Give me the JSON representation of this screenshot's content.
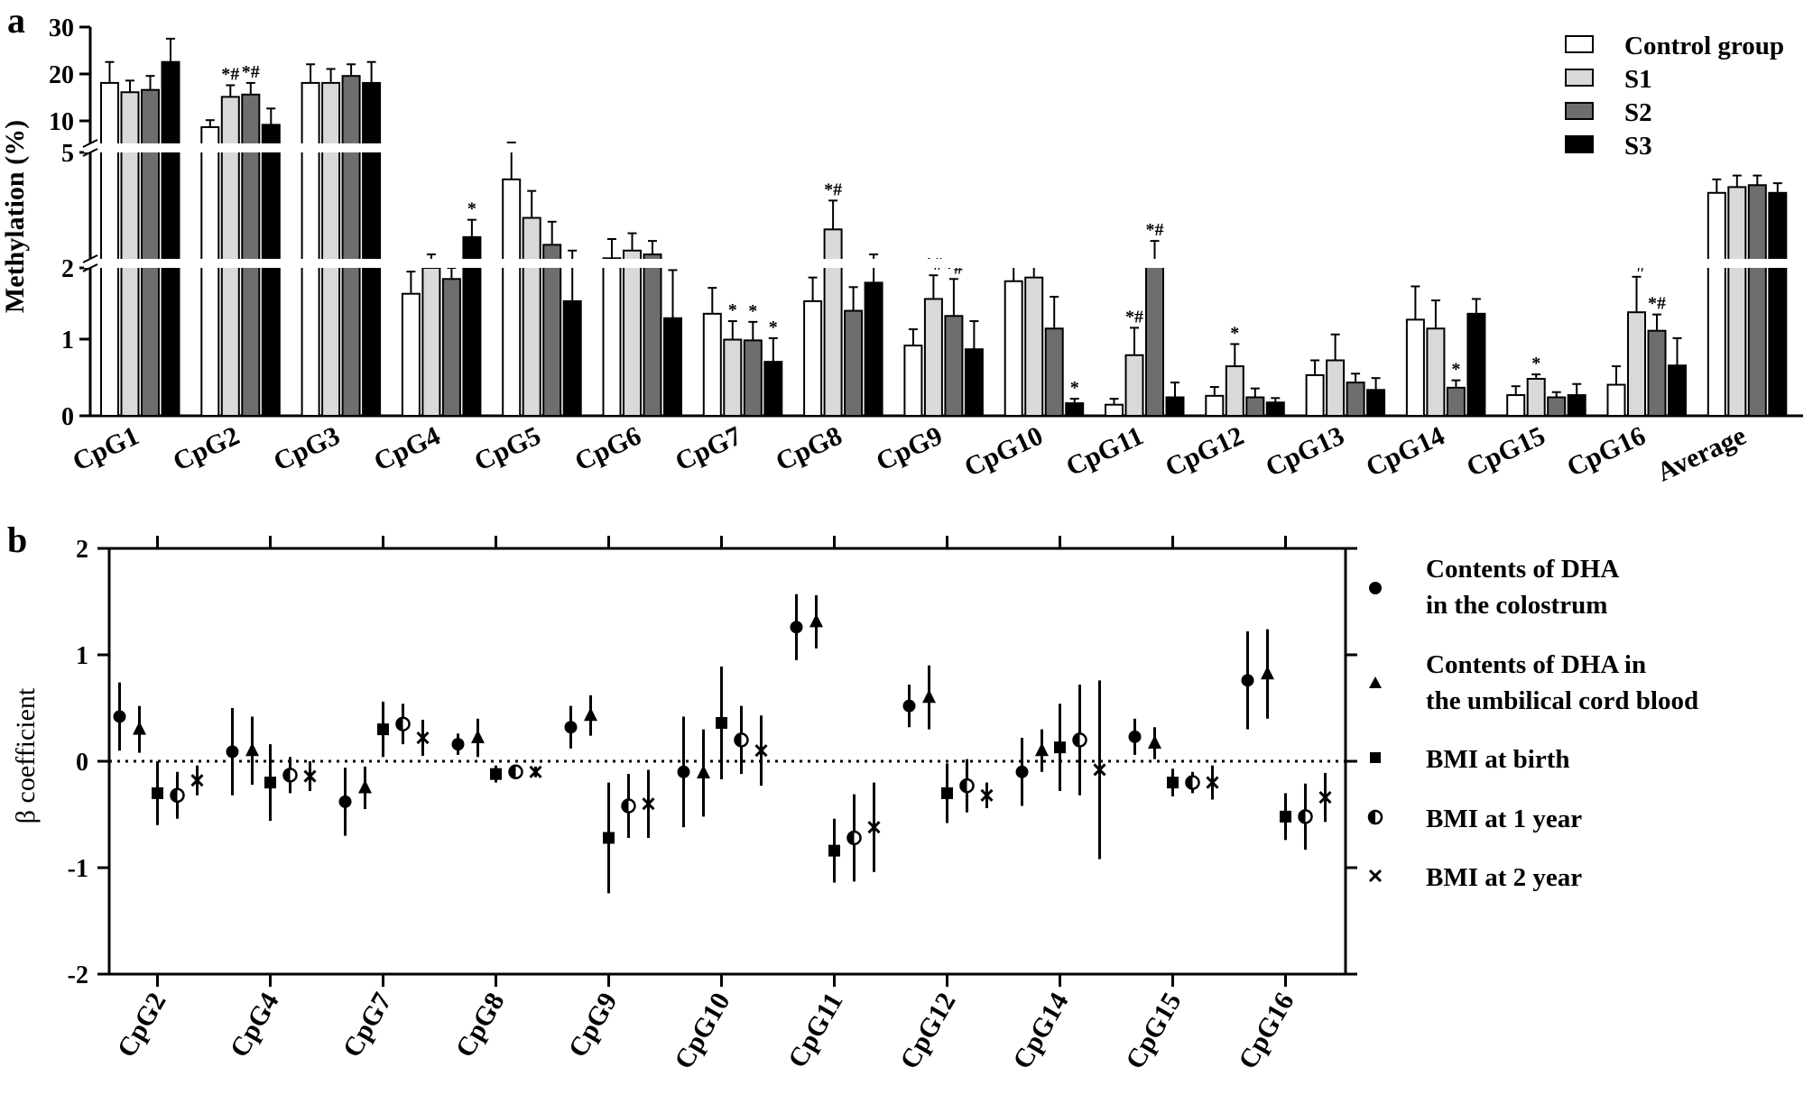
{
  "panel_a_label": "a",
  "panel_b_label": "b",
  "legend_a": [
    "Control group",
    "S1",
    "S2",
    "S3"
  ],
  "legend_b": [
    [
      "Contents of DHA",
      "in the colostrum"
    ],
    [
      "Contents of DHA in",
      "the umbilical cord blood"
    ],
    [
      "BMI at birth"
    ],
    [
      "BMI at 1 year"
    ],
    [
      "BMI at 2 year"
    ]
  ],
  "colors": {
    "control": "#ffffff",
    "s1": "#d9d9d9",
    "s2": "#6e6e6e",
    "s3": "#000000"
  },
  "chart_data": [
    {
      "type": "bar",
      "ylabel": "Methylation (%)",
      "y_axis": "broken",
      "y_segments": [
        [
          0,
          2
        ],
        [
          2,
          5
        ],
        [
          5,
          30
        ]
      ],
      "yticks": [
        "0",
        "1",
        "2",
        "5",
        "10",
        "20",
        "30"
      ],
      "categories": [
        "CpG1",
        "CpG2",
        "CpG3",
        "CpG4",
        "CpG5",
        "CpG6",
        "CpG7",
        "CpG8",
        "CpG9",
        "CpG10",
        "CpG11",
        "CpG12",
        "CpG13",
        "CpG14",
        "CpG15",
        "CpG16",
        "Average"
      ],
      "series": [
        {
          "name": "Control group",
          "values": [
            18,
            8.5,
            18,
            1.65,
            4.3,
            2.25,
            1.38,
            1.55,
            0.95,
            1.82,
            0.15,
            0.27,
            0.55,
            1.3,
            0.28,
            0.42,
            3.95
          ],
          "errors": [
            4.5,
            1.5,
            4,
            0.3,
            0.9,
            0.5,
            0.35,
            0.32,
            0.22,
            0.35,
            0.08,
            0.12,
            0.2,
            0.45,
            0.12,
            0.25,
            0.35
          ]
        },
        {
          "name": "S1",
          "values": [
            16,
            15,
            18,
            2.0,
            3.3,
            2.45,
            1.03,
            3.0,
            1.58,
            1.87,
            0.82,
            0.67,
            0.75,
            1.18,
            0.5,
            1.4,
            4.1
          ],
          "errors": [
            2.5,
            2.5,
            3,
            0.35,
            0.7,
            0.45,
            0.25,
            0.75,
            0.32,
            0.3,
            0.37,
            0.3,
            0.35,
            0.38,
            0.06,
            0.48,
            0.3
          ]
        },
        {
          "name": "S2",
          "values": [
            16.5,
            15.5,
            19.5,
            1.85,
            2.6,
            2.35,
            1.02,
            1.42,
            1.35,
            1.18,
            2.15,
            0.25,
            0.45,
            0.38,
            0.25,
            1.15,
            4.15
          ],
          "errors": [
            3,
            2.5,
            2.5,
            0.15,
            0.6,
            0.35,
            0.25,
            0.32,
            0.5,
            0.43,
            0.55,
            0.12,
            0.12,
            0.1,
            0.07,
            0.22,
            0.25
          ]
        },
        {
          "name": "S3",
          "values": [
            22.5,
            9,
            18,
            2.8,
            1.55,
            1.32,
            0.73,
            1.8,
            0.9,
            0.17,
            0.25,
            0.18,
            0.35,
            1.38,
            0.28,
            0.68,
            3.95
          ],
          "errors": [
            5,
            3.5,
            4.5,
            0.45,
            0.9,
            0.65,
            0.32,
            0.55,
            0.38,
            0.06,
            0.2,
            0.06,
            0.16,
            0.2,
            0.15,
            0.37,
            0.25
          ]
        }
      ],
      "annotations": [
        {
          "category": "CpG2",
          "series": "S1",
          "text": "*#"
        },
        {
          "category": "CpG2",
          "series": "S2",
          "text": "*#"
        },
        {
          "category": "CpG4",
          "series": "S3",
          "text": "*"
        },
        {
          "category": "CpG7",
          "series": "S1",
          "text": "*"
        },
        {
          "category": "CpG7",
          "series": "S2",
          "text": "*"
        },
        {
          "category": "CpG7",
          "series": "S3",
          "text": "*"
        },
        {
          "category": "CpG8",
          "series": "S1",
          "text": "*#"
        },
        {
          "category": "CpG9",
          "series": "S1",
          "text": "*#"
        },
        {
          "category": "CpG9",
          "series": "S2",
          "text": "*#"
        },
        {
          "category": "CpG10",
          "series": "S3",
          "text": "*"
        },
        {
          "category": "CpG11",
          "series": "S1",
          "text": "*#"
        },
        {
          "category": "CpG11",
          "series": "S2",
          "text": "*#"
        },
        {
          "category": "CpG12",
          "series": "S1",
          "text": "*"
        },
        {
          "category": "CpG14",
          "series": "S2",
          "text": "*"
        },
        {
          "category": "CpG15",
          "series": "S1",
          "text": "*"
        },
        {
          "category": "CpG16",
          "series": "S1",
          "text": "*#"
        },
        {
          "category": "CpG16",
          "series": "S2",
          "text": "*#"
        }
      ]
    },
    {
      "type": "scatter",
      "ylabel": "β coefficient",
      "ylim": [
        -2,
        2
      ],
      "yticks": [
        "-2",
        "-1",
        "0",
        "1",
        "2"
      ],
      "reference_line": 0,
      "categories": [
        "CpG2",
        "CpG4",
        "CpG7",
        "CpG8",
        "CpG9",
        "CpG10",
        "CpG11",
        "CpG12",
        "CpG14",
        "CpG15",
        "CpG16"
      ],
      "series": [
        {
          "name": "Contents of DHA in the colostrum",
          "marker": "circle",
          "values": [
            0.42,
            0.09,
            -0.38,
            0.16,
            0.32,
            -0.1,
            1.26,
            0.52,
            -0.1,
            0.23,
            0.76
          ],
          "low": [
            0.1,
            -0.32,
            -0.7,
            0.06,
            0.12,
            -0.62,
            0.95,
            0.32,
            -0.42,
            0.06,
            0.3
          ],
          "high": [
            0.74,
            0.5,
            -0.06,
            0.26,
            0.52,
            0.42,
            1.57,
            0.72,
            0.22,
            0.4,
            1.22
          ]
        },
        {
          "name": "Contents of DHA in the umbilical cord blood",
          "marker": "triangle",
          "values": [
            0.3,
            0.1,
            -0.25,
            0.22,
            0.43,
            -0.11,
            1.31,
            0.6,
            0.1,
            0.17,
            0.82
          ],
          "low": [
            0.08,
            -0.22,
            -0.45,
            0.04,
            0.24,
            -0.52,
            1.06,
            0.3,
            -0.1,
            0.02,
            0.4
          ],
          "high": [
            0.52,
            0.42,
            -0.05,
            0.4,
            0.62,
            0.3,
            1.56,
            0.9,
            0.3,
            0.32,
            1.24
          ]
        },
        {
          "name": "BMI at birth",
          "marker": "square",
          "values": [
            -0.3,
            -0.2,
            0.3,
            -0.12,
            -0.72,
            0.36,
            -0.84,
            -0.3,
            0.13,
            -0.2,
            -0.52
          ],
          "low": [
            -0.6,
            -0.56,
            0.04,
            -0.2,
            -1.24,
            -0.17,
            -1.14,
            -0.58,
            -0.28,
            -0.33,
            -0.74
          ],
          "high": [
            0.0,
            0.16,
            0.56,
            -0.04,
            -0.2,
            0.89,
            -0.54,
            -0.02,
            0.54,
            -0.07,
            -0.3
          ]
        },
        {
          "name": "BMI at 1 year",
          "marker": "half-circle",
          "values": [
            -0.32,
            -0.13,
            0.35,
            -0.1,
            -0.42,
            0.2,
            -0.72,
            -0.23,
            0.2,
            -0.2,
            -0.52
          ],
          "low": [
            -0.54,
            -0.3,
            0.16,
            -0.16,
            -0.72,
            -0.12,
            -1.13,
            -0.48,
            -0.32,
            -0.3,
            -0.83
          ],
          "high": [
            -0.1,
            0.04,
            0.54,
            -0.04,
            -0.12,
            0.52,
            -0.31,
            0.02,
            0.72,
            -0.1,
            -0.21
          ]
        },
        {
          "name": "BMI at 2 year",
          "marker": "cross",
          "values": [
            -0.18,
            -0.14,
            0.22,
            -0.1,
            -0.4,
            0.1,
            -0.62,
            -0.32,
            -0.08,
            -0.2,
            -0.34
          ],
          "low": [
            -0.32,
            -0.28,
            0.05,
            -0.15,
            -0.72,
            -0.23,
            -1.04,
            -0.44,
            -0.92,
            -0.36,
            -0.57
          ],
          "high": [
            -0.04,
            0.0,
            0.39,
            -0.05,
            -0.08,
            0.43,
            -0.2,
            -0.2,
            0.76,
            -0.04,
            -0.11
          ]
        }
      ]
    }
  ]
}
